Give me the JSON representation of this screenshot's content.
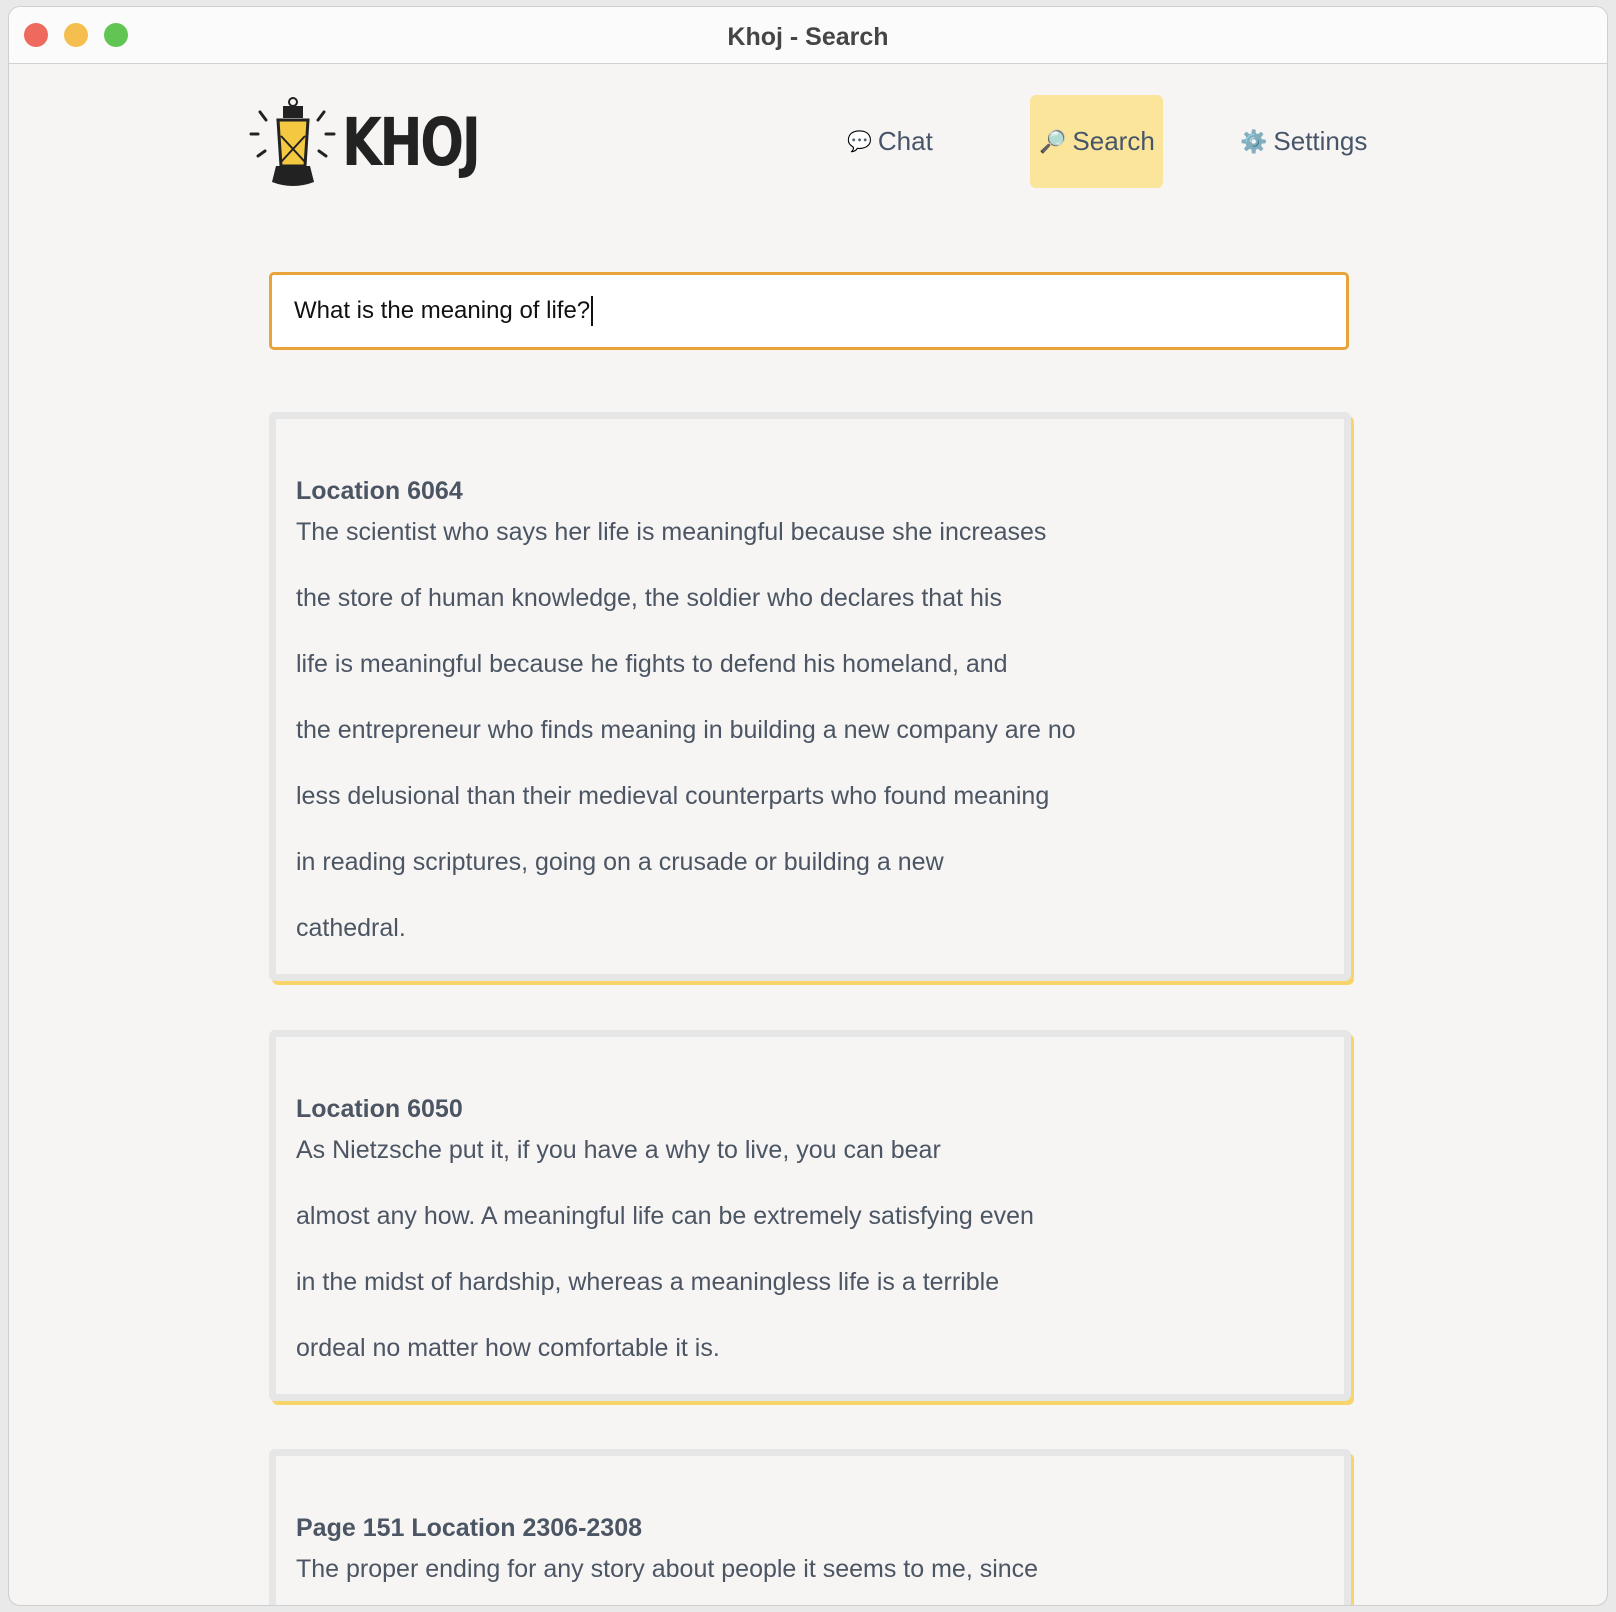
{
  "window": {
    "title": "Khoj - Search"
  },
  "logo": {
    "text": "KHOJ"
  },
  "nav": [
    {
      "label": "Chat",
      "icon": "speech-bubble-icon"
    },
    {
      "label": "Search",
      "icon": "magnifier-icon",
      "active": true
    },
    {
      "label": "Settings",
      "icon": "gear-icon"
    }
  ],
  "search": {
    "value": "What is the meaning of life?"
  },
  "results": [
    {
      "heading": "Location 6064",
      "lines": [
        "The scientist who says her life is meaningful because she increases",
        "the store of human knowledge, the soldier who declares that his",
        "life is meaningful because he fights to defend his homeland, and",
        "the entrepreneur who finds meaning in building a new company are no",
        "less delusional than their medieval counterparts who found meaning",
        "in reading scriptures, going on a crusade or building a new",
        "cathedral."
      ]
    },
    {
      "heading": "Location 6050",
      "lines": [
        "As Nietzsche put it, if you have a why to live, you can bear",
        "almost any how. A meaningful life can be extremely satisfying even",
        "in the midst of hardship, whereas a meaningless life is a terrible",
        "ordeal no matter how comfortable it is."
      ]
    },
    {
      "heading": "Page 151 Location 2306-2308",
      "lines": [
        "The proper ending for any story about people it seems to me, since"
      ]
    }
  ],
  "colors": {
    "accent": "#e8a33a",
    "active_nav": "#fae59a",
    "card_shadow": "#f8d56a"
  }
}
